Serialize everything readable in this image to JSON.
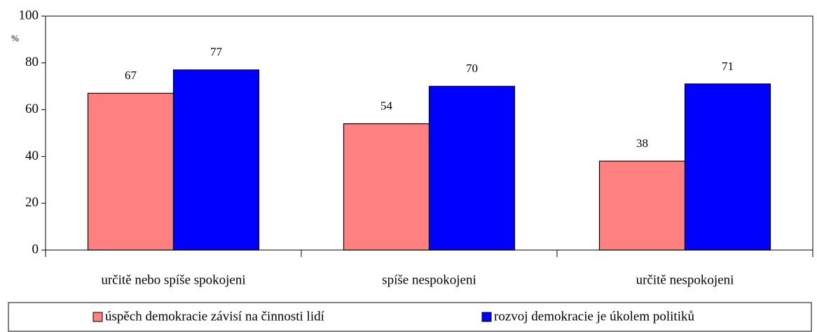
{
  "chart_data": {
    "type": "bar",
    "y_label": "%",
    "categories": [
      "určitě nebo spíše spokojeni",
      "spíše nespokojeni",
      "určitě nespokojeni"
    ],
    "series": [
      {
        "name": "úspěch demokracie závisí na činnosti lidí",
        "color": "#ff8080",
        "values": [
          67,
          54,
          38
        ]
      },
      {
        "name": "rozvoj demokracie je úkolem politiků",
        "color": "#0000ff",
        "values": [
          77,
          70,
          71
        ]
      }
    ],
    "ylim": [
      0,
      100
    ],
    "yticks": [
      0,
      20,
      40,
      60,
      80,
      100
    ],
    "legend": "bottom"
  }
}
